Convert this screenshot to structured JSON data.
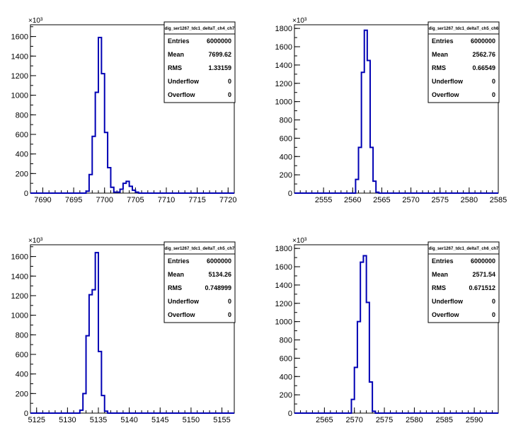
{
  "chart_data": [
    {
      "type": "histogram",
      "title": "dig_ser1267_tdc1_deltaT_ch4_ch7",
      "y_multiplier_label": "×10³",
      "xlim": [
        7688,
        7721
      ],
      "ylim": [
        0,
        1720
      ],
      "x_ticks": [
        7690,
        7695,
        7700,
        7705,
        7710,
        7715,
        7720
      ],
      "y_ticks": [
        0,
        200,
        400,
        600,
        800,
        1000,
        1200,
        1400,
        1600
      ],
      "bin_width": 0.5,
      "bin_starts": [
        7697.0,
        7697.5,
        7698.0,
        7698.5,
        7699.0,
        7699.5,
        7700.0,
        7700.5,
        7701.0,
        7701.5,
        7702.0,
        7702.5,
        7703.0,
        7703.5,
        7704.0,
        7704.5,
        7705.0,
        7705.5
      ],
      "values": [
        20,
        190,
        580,
        1030,
        1590,
        1220,
        620,
        260,
        60,
        10,
        10,
        40,
        100,
        120,
        70,
        30,
        10,
        0
      ],
      "stats": [
        {
          "label": "Entries",
          "value": "6000000"
        },
        {
          "label": "Mean",
          "value": "7699.62"
        },
        {
          "label": "RMS",
          "value": "1.33159"
        },
        {
          "label": "Underflow",
          "value": "0"
        },
        {
          "label": "Overflow",
          "value": "0"
        }
      ]
    },
    {
      "type": "histogram",
      "title": "dig_ser1267_tdc1_deltaT_ch5_ch6",
      "y_multiplier_label": "×10³",
      "xlim": [
        2550,
        2585
      ],
      "ylim": [
        0,
        1840
      ],
      "x_ticks": [
        2555,
        2560,
        2565,
        2570,
        2575,
        2580,
        2585
      ],
      "y_ticks": [
        0,
        200,
        400,
        600,
        800,
        1000,
        1200,
        1400,
        1600,
        1800
      ],
      "bin_width": 0.5,
      "bin_starts": [
        2560.5,
        2561.0,
        2561.5,
        2562.0,
        2562.5,
        2563.0,
        2563.5,
        2564.0
      ],
      "values": [
        150,
        500,
        1320,
        1780,
        1450,
        500,
        130,
        10
      ],
      "stats": [
        {
          "label": "Entries",
          "value": "6000000"
        },
        {
          "label": "Mean",
          "value": "2562.76"
        },
        {
          "label": "RMS",
          "value": "0.66549"
        },
        {
          "label": "Underflow",
          "value": "0"
        },
        {
          "label": "Overflow",
          "value": "0"
        }
      ]
    },
    {
      "type": "histogram",
      "title": "dig_ser1267_tdc1_deltaT_ch5_ch7",
      "y_multiplier_label": "×10³",
      "xlim": [
        5124,
        5157
      ],
      "ylim": [
        0,
        1720
      ],
      "x_ticks": [
        5125,
        5130,
        5135,
        5140,
        5145,
        5150,
        5155
      ],
      "y_ticks": [
        0,
        200,
        400,
        600,
        800,
        1000,
        1200,
        1400,
        1600
      ],
      "bin_width": 0.5,
      "bin_starts": [
        5132.0,
        5132.5,
        5133.0,
        5133.5,
        5134.0,
        5134.5,
        5135.0,
        5135.5,
        5136.0
      ],
      "values": [
        30,
        200,
        790,
        1210,
        1260,
        1640,
        630,
        180,
        20
      ],
      "stats": [
        {
          "label": "Entries",
          "value": "6000000"
        },
        {
          "label": "Mean",
          "value": "5134.26"
        },
        {
          "label": "RMS",
          "value": "0.748999"
        },
        {
          "label": "Underflow",
          "value": "0"
        },
        {
          "label": "Overflow",
          "value": "0"
        }
      ]
    },
    {
      "type": "histogram",
      "title": "dig_ser1267_tdc1_deltaT_ch6_ch7",
      "y_multiplier_label": "×10³",
      "xlim": [
        2560,
        2594
      ],
      "ylim": [
        0,
        1840
      ],
      "x_ticks": [
        2565,
        2570,
        2575,
        2580,
        2585,
        2590
      ],
      "y_ticks": [
        0,
        200,
        400,
        600,
        800,
        1000,
        1200,
        1400,
        1600,
        1800
      ],
      "bin_width": 0.5,
      "bin_starts": [
        2569.5,
        2570.0,
        2570.5,
        2571.0,
        2571.5,
        2572.0,
        2572.5,
        2573.0
      ],
      "values": [
        150,
        500,
        1000,
        1650,
        1720,
        1210,
        340,
        20
      ],
      "stats": [
        {
          "label": "Entries",
          "value": "6000000"
        },
        {
          "label": "Mean",
          "value": "2571.54"
        },
        {
          "label": "RMS",
          "value": "0.671512"
        },
        {
          "label": "Underflow",
          "value": "0"
        },
        {
          "label": "Overflow",
          "value": "0"
        }
      ]
    }
  ],
  "colors": {
    "histogram_line": "#0000b4",
    "frame": "#000000",
    "background": "#ffffff"
  }
}
